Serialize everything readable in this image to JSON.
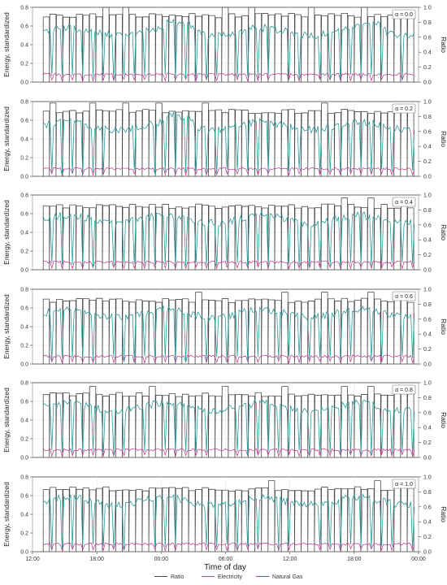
{
  "figure": {
    "ylabel_left": "Energy, standardized",
    "ylabel_right": "Ratio",
    "xlabel": "Time of day",
    "xticks": [
      "12:00",
      "18:00",
      "00:00",
      "06:00",
      "12:00",
      "18:00",
      "00:00"
    ],
    "yticks_left": [
      "0.0",
      "0.2",
      "0.4",
      "0.6",
      "0.8"
    ],
    "yticks_right": [
      "0.0",
      "0.2",
      "0.4",
      "0.6",
      "0.8",
      "1.0"
    ]
  },
  "legend": {
    "placement": "bottom-center",
    "items": [
      {
        "label": "Ratio",
        "color": "#4a4a4a"
      },
      {
        "label": "Electricity",
        "color": "#2a9d9a"
      },
      {
        "label": "Natural Gas",
        "color": "#c0308a"
      }
    ]
  },
  "chart_data": {
    "type": "line",
    "panel_count": 6,
    "alpha_labels": [
      "α = 0.0",
      "α = 0.2",
      "α = 0.4",
      "α = 0.6",
      "α = 0.8",
      "α = 1.0"
    ],
    "alpha_values": [
      0.0,
      0.2,
      0.4,
      0.6,
      0.8,
      1.0
    ],
    "x_range": [
      "12:00",
      "00:00 (+1 day)"
    ],
    "x_tick_hours": [
      12,
      18,
      24,
      30,
      36,
      42,
      48
    ],
    "ylim_left": [
      0,
      0.8
    ],
    "ylim_right": [
      0,
      1.0
    ],
    "grid": true,
    "series": [
      {
        "name": "Electricity",
        "axis": "left",
        "approx_level": 0.55,
        "approx_trough": 0.02
      },
      {
        "name": "Natural Gas",
        "axis": "left",
        "approx_level": 0.08
      },
      {
        "name": "Ratio",
        "axis": "right",
        "style": "step",
        "approx_level_by_panel": [
          0.9,
          0.88,
          0.86,
          0.86,
          0.85,
          0.85
        ]
      }
    ]
  },
  "colors": {
    "electricity": "#2a9d9a",
    "gas": "#c0308a",
    "ratio": "#4a4a4a",
    "grid": "#e6e6e6",
    "axis": "#444444"
  }
}
